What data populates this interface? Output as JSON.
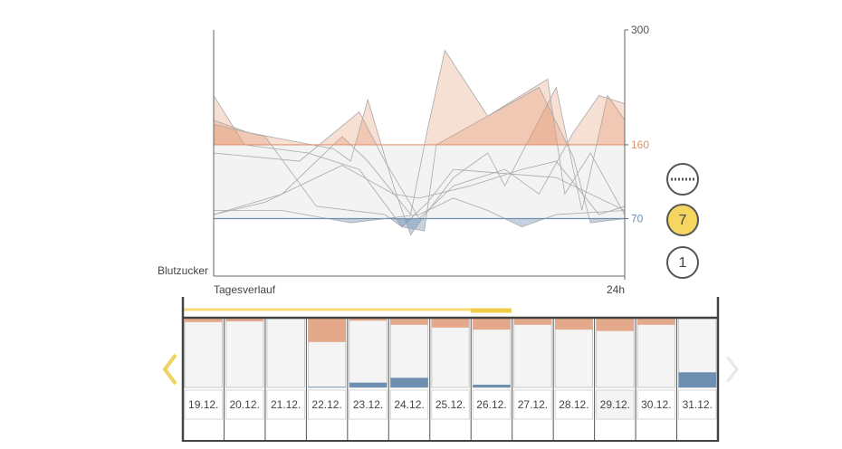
{
  "chart_data": [
    {
      "type": "line",
      "y_label": "Blutzucker",
      "x_label": "Tagesverlauf",
      "xlim": [
        0,
        24
      ],
      "xticks": [
        {
          "value": 24,
          "label": "24h"
        }
      ],
      "ylim": [
        0,
        300
      ],
      "yticks": [
        70,
        160,
        300
      ],
      "high": 160,
      "low": 70,
      "line_color": "#a9a9a9",
      "high_color": "#e0946c",
      "low_color": "#6f8fb0",
      "band_color": "#f3f3f3",
      "series": [
        {
          "x": [
            0,
            1.8,
            5.5,
            8.5,
            11,
            12.5,
            14,
            20,
            24
          ],
          "values": [
            220,
            160,
            150,
            130,
            60,
            90,
            130,
            120,
            80
          ]
        },
        {
          "x": [
            0,
            2,
            7,
            8,
            9,
            10.5,
            11.5,
            12,
            14,
            16,
            17,
            20,
            21.5,
            23,
            24
          ],
          "values": [
            190,
            175,
            155,
            140,
            215,
            110,
            50,
            65,
            120,
            150,
            110,
            230,
            80,
            220,
            190
          ]
        },
        {
          "x": [
            0,
            3,
            6,
            10,
            11,
            12.3,
            13,
            16,
            19.5,
            20.5,
            22,
            24
          ],
          "values": [
            185,
            170,
            85,
            75,
            60,
            55,
            160,
            195,
            240,
            100,
            150,
            75
          ]
        },
        {
          "x": [
            0,
            4,
            7.5,
            9,
            11.5,
            12.5,
            13.5,
            16,
            19,
            21,
            22,
            24
          ],
          "values": [
            75,
            100,
            170,
            140,
            75,
            180,
            275,
            195,
            230,
            145,
            65,
            70
          ]
        },
        {
          "x": [
            0,
            4,
            8,
            12,
            14,
            16,
            18,
            20,
            24
          ],
          "values": [
            80,
            80,
            65,
            75,
            95,
            80,
            60,
            75,
            80
          ]
        },
        {
          "x": [
            0,
            3,
            7.5,
            10.5,
            12,
            15,
            18,
            20,
            22.5,
            24
          ],
          "values": [
            75,
            90,
            135,
            100,
            95,
            110,
            130,
            140,
            75,
            85
          ]
        },
        {
          "x": [
            0,
            5,
            8.5,
            10,
            12,
            14,
            17,
            19,
            21,
            22.5,
            24
          ],
          "values": [
            150,
            140,
            200,
            140,
            70,
            110,
            130,
            100,
            175,
            220,
            210
          ]
        }
      ]
    },
    {
      "type": "bar",
      "categories": [
        "19.12.",
        "20.12.",
        "21.12.",
        "22.12.",
        "23.12.",
        "24.12.",
        "25.12.",
        "26.12.",
        "27.12.",
        "28.12.",
        "29.12.",
        "30.12.",
        "31.12."
      ],
      "ylim": [
        0,
        100
      ],
      "series": [
        {
          "color": "#e4a88a",
          "values": [
            5,
            4,
            0,
            34,
            3,
            9,
            13,
            16,
            9,
            16,
            18,
            9,
            0
          ]
        },
        {
          "color": "#6f8fb0",
          "values": [
            0,
            0,
            0,
            1,
            7,
            14,
            0,
            4,
            0,
            0,
            0,
            0,
            22
          ]
        }
      ]
    }
  ],
  "buttons": [
    "7",
    "1"
  ]
}
